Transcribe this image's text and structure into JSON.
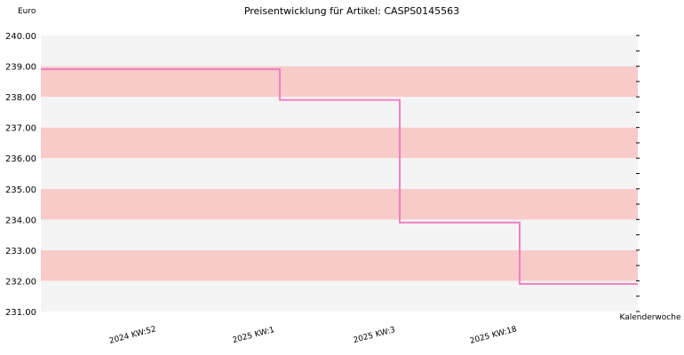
{
  "chart_data": {
    "type": "line",
    "title": "Preisentwicklung für Artikel: CASPS0145563",
    "ylabel": "Euro",
    "xlabel": "Kalenderwoche",
    "ylim": [
      231,
      240
    ],
    "y_ticks": [
      "240.00",
      "239.00",
      "238.00",
      "237.00",
      "236.00",
      "235.00",
      "234.00",
      "233.00",
      "232.00",
      "231.00"
    ],
    "categories": [
      "2024 KW:52",
      "2025 KW:1",
      "2025 KW:3",
      "2025 KW:18"
    ],
    "step": true,
    "series": [
      {
        "values": [
          238.9,
          237.9,
          233.9,
          231.9
        ]
      }
    ],
    "colors": {
      "line": "#f080c0",
      "band_pink": "#f8caca",
      "band_grey": "#f4f4f4"
    },
    "grid": false,
    "legend": "none"
  }
}
